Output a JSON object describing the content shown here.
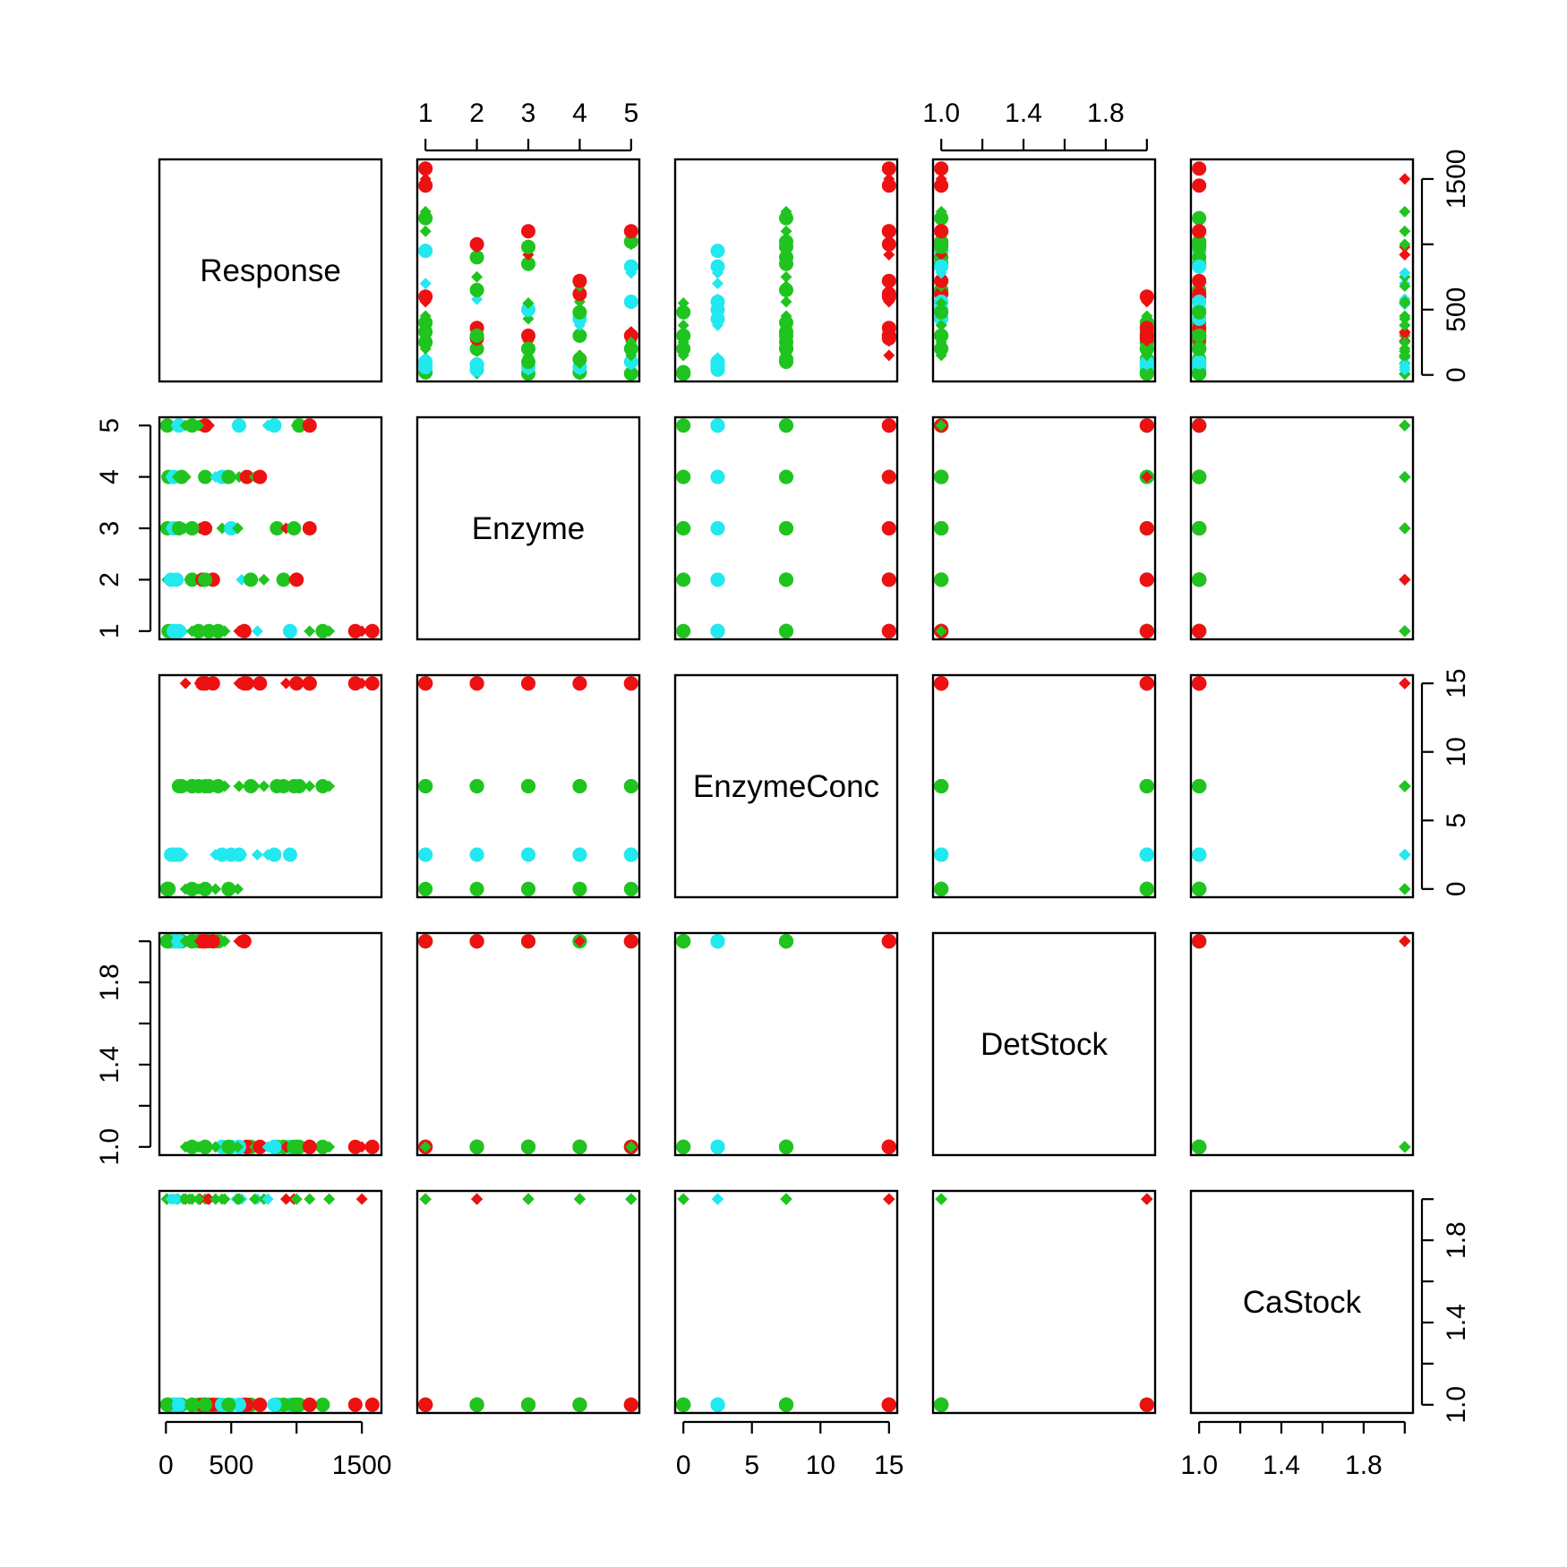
{
  "chart_data": {
    "type": "scatter",
    "subtype": "scatterplot-matrix",
    "variables": [
      {
        "name": "Response",
        "range": [
          -50,
          1650
        ],
        "ticks": [
          0,
          500,
          1500
        ],
        "tick_labels": [
          "0",
          "500",
          "1500"
        ],
        "minor_ticks": [
          0,
          500,
          1000,
          1500
        ],
        "side_ticks": [
          0,
          500,
          1000,
          1500
        ],
        "side_labels": [
          "0",
          "500",
          "",
          "1500"
        ]
      },
      {
        "name": "Enzyme",
        "range": [
          0.84,
          5.16
        ],
        "ticks": [
          1,
          2,
          3,
          4,
          5
        ],
        "tick_labels": [
          "1",
          "2",
          "3",
          "4",
          "5"
        ]
      },
      {
        "name": "EnzymeConc",
        "range": [
          -0.6,
          15.6
        ],
        "ticks": [
          0,
          5,
          10,
          15
        ],
        "tick_labels": [
          "0",
          "5",
          "10",
          "15"
        ]
      },
      {
        "name": "DetStock",
        "range": [
          0.96,
          2.04
        ],
        "ticks": [
          1.0,
          1.2,
          1.4,
          1.6,
          1.8,
          2.0
        ],
        "tick_labels": [
          "1.0",
          "",
          "1.4",
          "",
          "1.8",
          ""
        ]
      },
      {
        "name": "CaStock",
        "range": [
          0.96,
          2.04
        ],
        "ticks": [
          1.0,
          1.2,
          1.4,
          1.6,
          1.8,
          2.0
        ],
        "tick_labels": [
          "1.0",
          "",
          "1.4",
          "",
          "1.8",
          ""
        ]
      }
    ],
    "group_colors": {
      "cyan": "#22e8f0",
      "green": "#1fc41f",
      "red": "#ee1111"
    },
    "markers": {
      "1": "circle",
      "2": "diamond"
    },
    "points": [
      [
        20,
        1,
        0,
        2,
        1,
        "green"
      ],
      [
        60,
        1,
        2.5,
        2,
        1,
        "cyan"
      ],
      [
        100,
        1,
        2.5,
        2,
        1,
        "cyan"
      ],
      [
        130,
        1,
        2.5,
        2,
        2,
        "cyan"
      ],
      [
        200,
        1,
        7.5,
        2,
        2,
        "green"
      ],
      [
        250,
        1,
        7.5,
        2,
        1,
        "green"
      ],
      [
        300,
        1,
        7.5,
        2,
        2,
        "green"
      ],
      [
        330,
        1,
        7.5,
        2,
        1,
        "green"
      ],
      [
        400,
        1,
        7.5,
        2,
        1,
        "green"
      ],
      [
        450,
        1,
        7.5,
        2,
        2,
        "green"
      ],
      [
        560,
        1,
        15,
        2,
        2,
        "red"
      ],
      [
        600,
        1,
        15,
        2,
        1,
        "red"
      ],
      [
        700,
        1,
        2.5,
        1,
        2,
        "cyan"
      ],
      [
        950,
        1,
        2.5,
        1,
        1,
        "cyan"
      ],
      [
        1100,
        1,
        7.5,
        1,
        2,
        "green"
      ],
      [
        1200,
        1,
        7.5,
        1,
        1,
        "green"
      ],
      [
        1250,
        1,
        7.5,
        1,
        2,
        "green"
      ],
      [
        1450,
        1,
        15,
        1,
        1,
        "red"
      ],
      [
        1500,
        1,
        15,
        1,
        2,
        "red"
      ],
      [
        1580,
        1,
        15,
        1,
        1,
        "red"
      ],
      [
        10,
        2,
        0,
        2,
        2,
        "green"
      ],
      [
        40,
        2,
        2.5,
        2,
        1,
        "cyan"
      ],
      [
        60,
        2,
        2.5,
        2,
        2,
        "cyan"
      ],
      [
        80,
        2,
        2.5,
        2,
        1,
        "cyan"
      ],
      [
        180,
        2,
        7.5,
        2,
        2,
        "green"
      ],
      [
        200,
        2,
        7.5,
        2,
        1,
        "green"
      ],
      [
        250,
        2,
        7.5,
        2,
        2,
        "green"
      ],
      [
        280,
        2,
        15,
        2,
        1,
        "red"
      ],
      [
        320,
        2,
        15,
        2,
        2,
        "red"
      ],
      [
        360,
        2,
        15,
        2,
        1,
        "red"
      ],
      [
        580,
        2,
        2.5,
        1,
        2,
        "cyan"
      ],
      [
        650,
        2,
        7.5,
        1,
        1,
        "green"
      ],
      [
        750,
        2,
        7.5,
        1,
        2,
        "green"
      ],
      [
        900,
        2,
        7.5,
        1,
        1,
        "green"
      ],
      [
        980,
        2,
        15,
        1,
        2,
        "red"
      ],
      [
        1000,
        2,
        15,
        1,
        1,
        "red"
      ],
      [
        10,
        3,
        0,
        2,
        1,
        "green"
      ],
      [
        40,
        3,
        2.5,
        2,
        2,
        "cyan"
      ],
      [
        60,
        3,
        2.5,
        2,
        1,
        "cyan"
      ],
      [
        100,
        3,
        7.5,
        2,
        1,
        "green"
      ],
      [
        140,
        3,
        7.5,
        2,
        2,
        "green"
      ],
      [
        200,
        3,
        7.5,
        2,
        1,
        "green"
      ],
      [
        260,
        3,
        15,
        2,
        2,
        "red"
      ],
      [
        300,
        3,
        15,
        2,
        1,
        "red"
      ],
      [
        430,
        3,
        7.5,
        1,
        2,
        "green"
      ],
      [
        500,
        3,
        2.5,
        1,
        1,
        "cyan"
      ],
      [
        540,
        3,
        2.5,
        1,
        2,
        "cyan"
      ],
      [
        850,
        3,
        7.5,
        1,
        1,
        "green"
      ],
      [
        920,
        3,
        15,
        1,
        2,
        "red"
      ],
      [
        980,
        3,
        7.5,
        1,
        1,
        "green"
      ],
      [
        1100,
        3,
        15,
        1,
        1,
        "red"
      ],
      [
        5,
        4,
        0,
        2,
        2,
        "green"
      ],
      [
        20,
        4,
        0,
        2,
        1,
        "green"
      ],
      [
        40,
        4,
        2.5,
        2,
        2,
        "cyan"
      ],
      [
        60,
        4,
        2.5,
        2,
        1,
        "cyan"
      ],
      [
        90,
        4,
        7.5,
        2,
        2,
        "green"
      ],
      [
        120,
        4,
        7.5,
        2,
        1,
        "green"
      ],
      [
        150,
        4,
        15,
        2,
        2,
        "red"
      ],
      [
        300,
        4,
        7.5,
        1,
        1,
        "green"
      ],
      [
        380,
        4,
        2.5,
        1,
        2,
        "cyan"
      ],
      [
        430,
        4,
        2.5,
        1,
        1,
        "cyan"
      ],
      [
        560,
        4,
        7.5,
        1,
        2,
        "green"
      ],
      [
        620,
        4,
        15,
        1,
        1,
        "red"
      ],
      [
        680,
        4,
        7.5,
        1,
        2,
        "green"
      ],
      [
        720,
        4,
        15,
        1,
        1,
        "red"
      ],
      [
        10,
        5,
        0,
        2,
        1,
        "green"
      ],
      [
        80,
        5,
        2.5,
        2,
        2,
        "cyan"
      ],
      [
        100,
        5,
        2.5,
        2,
        1,
        "cyan"
      ],
      [
        150,
        5,
        7.5,
        2,
        2,
        "green"
      ],
      [
        200,
        5,
        7.5,
        2,
        1,
        "green"
      ],
      [
        260,
        5,
        15,
        2,
        2,
        "red"
      ],
      [
        300,
        5,
        15,
        2,
        1,
        "red"
      ],
      [
        330,
        5,
        15,
        2,
        2,
        "red"
      ],
      [
        560,
        5,
        2.5,
        1,
        1,
        "cyan"
      ],
      [
        780,
        5,
        2.5,
        1,
        2,
        "cyan"
      ],
      [
        830,
        5,
        2.5,
        1,
        1,
        "cyan"
      ],
      [
        1000,
        5,
        7.5,
        1,
        2,
        "green"
      ],
      [
        1020,
        5,
        7.5,
        1,
        1,
        "green"
      ],
      [
        1100,
        5,
        15,
        1,
        1,
        "red"
      ],
      [
        550,
        3,
        0,
        1,
        2,
        "green"
      ],
      [
        480,
        4,
        0,
        1,
        1,
        "green"
      ],
      [
        380,
        1,
        0,
        1,
        2,
        "green"
      ],
      [
        300,
        2,
        0,
        1,
        1,
        "green"
      ],
      [
        250,
        5,
        0,
        1,
        2,
        "green"
      ],
      [
        200,
        3,
        0,
        1,
        1,
        "green"
      ],
      [
        150,
        4,
        0,
        1,
        2,
        "green"
      ]
    ]
  }
}
